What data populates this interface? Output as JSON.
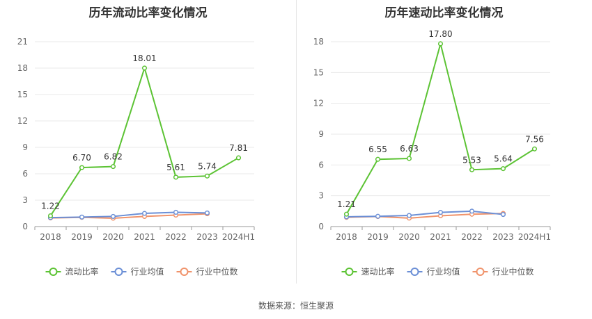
{
  "chart_data": [
    {
      "type": "line",
      "title": "历年流动比率变化情况",
      "categories": [
        "2018",
        "2019",
        "2020",
        "2021",
        "2022",
        "2023",
        "2024H1"
      ],
      "ylim": [
        0,
        21
      ],
      "yticks": [
        "0",
        "3",
        "6",
        "9",
        "12",
        "15",
        "18",
        "21"
      ],
      "grid": true,
      "legend_position": "bottom",
      "series": [
        {
          "name": "流动比率",
          "color": "#5cc334",
          "values": [
            1.22,
            6.7,
            6.82,
            18.01,
            5.61,
            5.74,
            7.81
          ],
          "labels": [
            "1.22",
            "6.70",
            "6.82",
            "18.01",
            "5.61",
            "5.74",
            "7.81"
          ]
        },
        {
          "name": "行业均值",
          "color": "#6b8fd6",
          "values": [
            1.02,
            1.08,
            1.15,
            1.5,
            1.62,
            1.55,
            null
          ]
        },
        {
          "name": "行业中位数",
          "color": "#f0936b",
          "values": [
            0.98,
            1.05,
            0.95,
            1.15,
            1.3,
            1.45,
            null
          ]
        }
      ]
    },
    {
      "type": "line",
      "title": "历年速动比率变化情况",
      "categories": [
        "2018",
        "2019",
        "2020",
        "2021",
        "2022",
        "2023",
        "2024H1"
      ],
      "ylim": [
        0,
        18
      ],
      "yticks": [
        "0",
        "3",
        "6",
        "9",
        "12",
        "15",
        "18"
      ],
      "grid": true,
      "legend_position": "bottom",
      "series": [
        {
          "name": "速动比率",
          "color": "#5cc334",
          "values": [
            1.21,
            6.55,
            6.63,
            17.8,
            5.53,
            5.64,
            7.56
          ],
          "labels": [
            "1.21",
            "6.55",
            "6.63",
            "17.80",
            "5.53",
            "5.64",
            "7.56"
          ]
        },
        {
          "name": "行业均值",
          "color": "#6b8fd6",
          "values": [
            0.95,
            1.0,
            1.08,
            1.38,
            1.5,
            1.18,
            null
          ]
        },
        {
          "name": "行业中位数",
          "color": "#f0936b",
          "values": [
            0.9,
            0.98,
            0.82,
            1.05,
            1.2,
            1.28,
            null
          ]
        }
      ]
    }
  ],
  "footer": {
    "source": "数据来源：恒生聚源"
  }
}
